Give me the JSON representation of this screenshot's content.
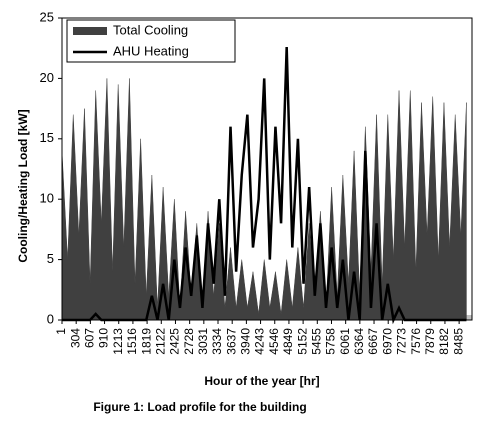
{
  "chart_data": {
    "type": "line",
    "caption": "Figure 1: Load profile for the building",
    "xlabel": "Hour of the year [hr]",
    "ylabel": "Cooling/Heating Load [kW]",
    "x": [
      1,
      121,
      241,
      361,
      481,
      601,
      721,
      841,
      961,
      1081,
      1201,
      1321,
      1441,
      1561,
      1681,
      1801,
      1921,
      2041,
      2161,
      2281,
      2401,
      2521,
      2641,
      2761,
      2881,
      3001,
      3121,
      3241,
      3361,
      3481,
      3601,
      3721,
      3841,
      3961,
      4081,
      4201,
      4321,
      4441,
      4561,
      4681,
      4801,
      4921,
      5041,
      5161,
      5281,
      5401,
      5521,
      5641,
      5761,
      5881,
      6001,
      6121,
      6241,
      6361,
      6481,
      6601,
      6721,
      6841,
      6961,
      7081,
      7201,
      7321,
      7441,
      7561,
      7681,
      7801,
      7921,
      8041,
      8161,
      8281,
      8401,
      8521,
      8641
    ],
    "series": [
      {
        "name": "Total Cooling",
        "color": "#404040",
        "style": "area",
        "values": [
          14,
          5,
          17,
          7,
          17.5,
          3,
          19,
          8,
          20,
          4,
          19.5,
          6,
          20,
          3,
          15,
          2,
          12,
          1,
          11,
          2,
          10,
          1,
          9,
          2,
          8,
          1,
          9,
          2,
          8,
          1,
          6,
          1,
          5,
          1,
          4,
          0.5,
          5,
          1,
          4,
          0.5,
          5,
          1,
          6,
          1,
          8,
          2,
          9,
          1,
          11,
          2,
          12,
          3,
          14,
          2,
          16,
          4,
          17,
          3,
          17,
          5,
          19,
          6,
          19,
          4,
          18,
          7,
          18.5,
          5,
          18,
          6,
          17,
          7,
          18
        ]
      },
      {
        "name": "AHU Heating",
        "color": "#000000",
        "style": "line",
        "values": [
          0,
          0,
          0,
          0,
          0,
          0,
          0.5,
          0,
          0,
          0,
          0,
          0,
          0,
          0,
          0,
          0,
          2,
          0,
          3,
          0,
          5,
          1,
          6,
          2,
          7,
          1,
          8,
          3,
          10,
          2,
          16,
          4,
          12,
          17,
          6,
          10,
          20,
          5,
          16,
          8,
          22.6,
          6,
          15,
          3,
          11,
          2,
          8,
          1,
          6,
          1,
          5,
          0,
          4,
          0,
          14,
          1,
          8,
          0,
          3,
          0,
          1,
          0,
          0,
          0,
          0,
          0,
          0,
          0,
          0,
          0,
          0,
          0,
          0
        ]
      }
    ],
    "xlim": [
      1,
      8760
    ],
    "xticks": [
      1,
      304,
      607,
      910,
      1213,
      1516,
      1819,
      2122,
      2425,
      2728,
      3031,
      3334,
      3637,
      3940,
      4243,
      4546,
      4849,
      5152,
      5455,
      5758,
      6061,
      6364,
      6667,
      6970,
      7273,
      7576,
      7879,
      8182,
      8485
    ],
    "ylim": [
      0,
      25
    ],
    "yticks": [
      0,
      5,
      10,
      15,
      20,
      25
    ],
    "legend": "upper left"
  }
}
